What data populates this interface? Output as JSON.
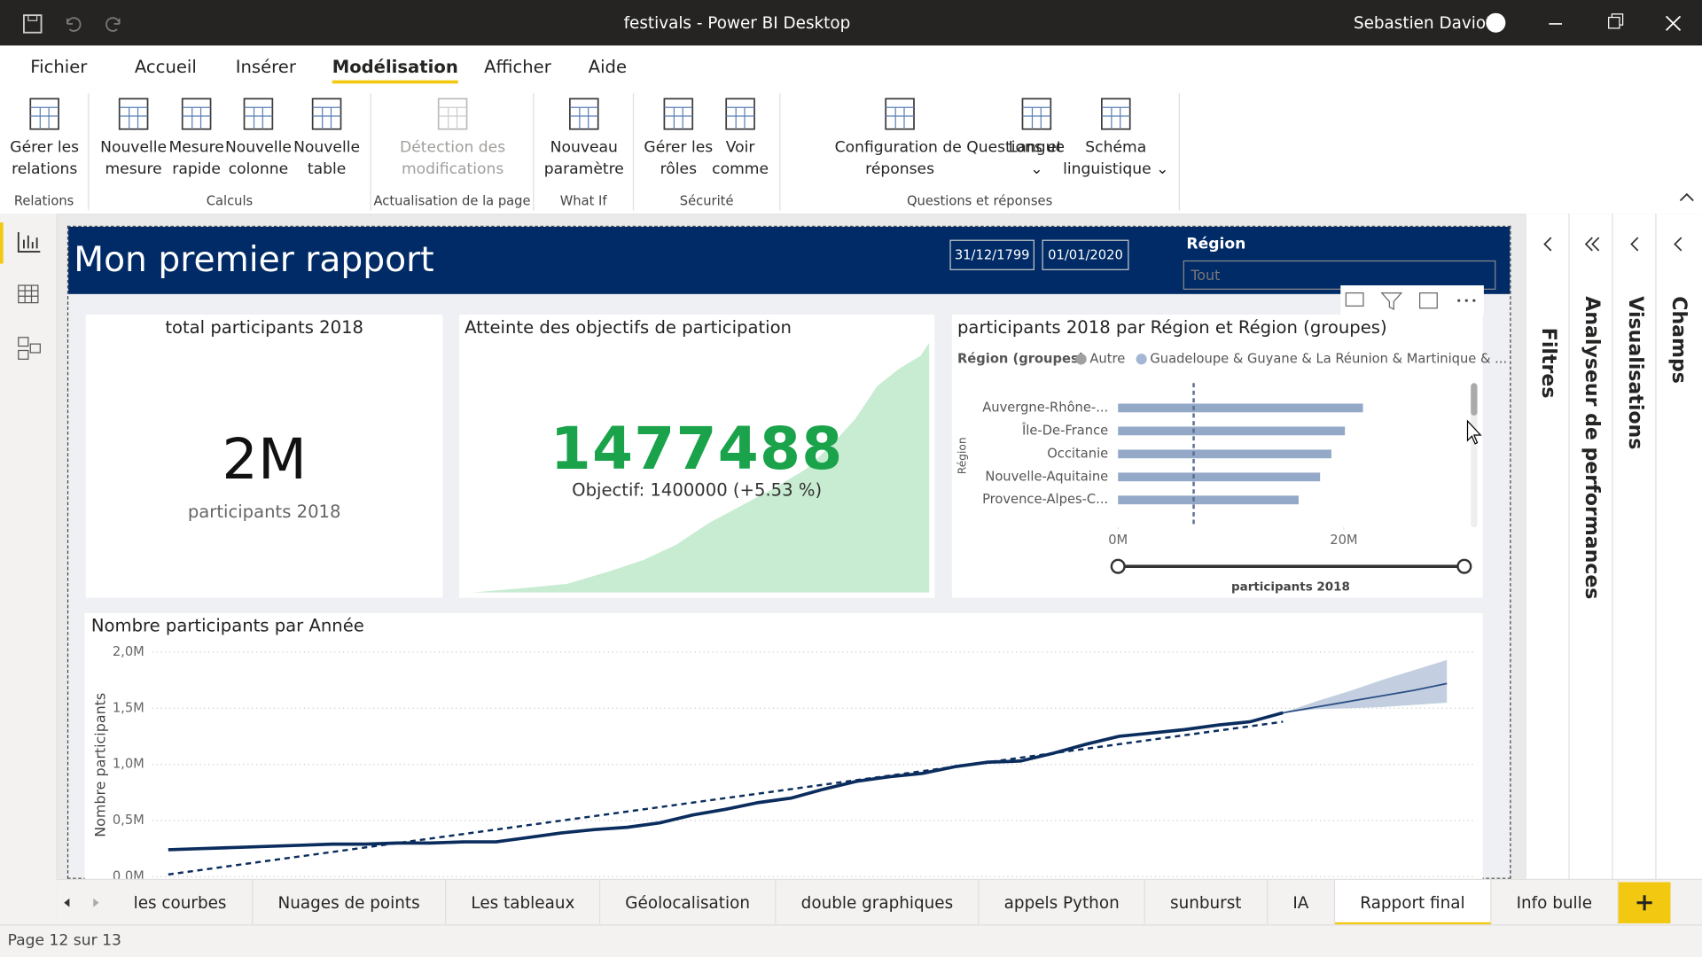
{
  "titlebar": {
    "title": "festivals - Power BI Desktop",
    "user": "Sebastien Daviot"
  },
  "menu": {
    "items": [
      "Fichier",
      "Accueil",
      "Insérer",
      "Modélisation",
      "Afficher",
      "Aide"
    ],
    "active": 3
  },
  "ribbon": {
    "groups": [
      {
        "label": "Relations",
        "buttons": [
          {
            "lines": [
              "Gérer les",
              "relations"
            ]
          }
        ]
      },
      {
        "label": "Calculs",
        "buttons": [
          {
            "lines": [
              "Nouvelle",
              "mesure"
            ]
          },
          {
            "lines": [
              "Mesure",
              "rapide"
            ]
          },
          {
            "lines": [
              "Nouvelle",
              "colonne"
            ]
          },
          {
            "lines": [
              "Nouvelle",
              "table"
            ]
          }
        ]
      },
      {
        "label": "Actualisation de la page",
        "disabled": true,
        "buttons": [
          {
            "lines": [
              "Détection des",
              "modifications"
            ]
          }
        ]
      },
      {
        "label": "What If",
        "buttons": [
          {
            "lines": [
              "Nouveau",
              "paramètre"
            ]
          }
        ]
      },
      {
        "label": "Sécurité",
        "buttons": [
          {
            "lines": [
              "Gérer les",
              "rôles"
            ]
          },
          {
            "lines": [
              "Voir",
              "comme"
            ]
          }
        ]
      },
      {
        "label": "Questions et réponses",
        "buttons": [
          {
            "lines": [
              "Configuration de Questions et",
              "réponses"
            ]
          },
          {
            "lines": [
              "Langue",
              "⌄"
            ]
          },
          {
            "lines": [
              "Schéma",
              "linguistique ⌄"
            ]
          }
        ]
      }
    ]
  },
  "report": {
    "title": "Mon premier rapport",
    "dates": [
      "31/12/1799",
      "01/01/2020"
    ],
    "slicer": {
      "label": "Région",
      "placeholder": "Tout"
    },
    "card": {
      "title": "total participants 2018",
      "value": "2M",
      "label": "participants 2018"
    },
    "kpi": {
      "title": "Atteinte des objectifs de participation",
      "value": "1477488",
      "goal": "Objectif: 1400000 (+5.53 %)"
    },
    "bar_chart": {
      "type": "bar",
      "orientation": "horizontal",
      "title": "participants 2018 par Région et Région (groupes)",
      "legend_title": "Région (groupes)",
      "legend": [
        {
          "name": "Autre",
          "color": "#a0a0a0"
        },
        {
          "name": "Guadeloupe & Guyane & La Réunion & Martinique & ...",
          "color": "#a3b7d4"
        }
      ],
      "ylabel": "Région",
      "xlabel": "participants 2018",
      "categories": [
        "Auvergne-Rhône-...",
        "Île-De-France",
        "Occitanie",
        "Nouvelle-Aquitaine",
        "Provence-Alpes-C..."
      ],
      "values": [
        21.7,
        20.1,
        18.9,
        17.9,
        16.0
      ],
      "color": "#94a9c8",
      "reference_line": 6.7,
      "xlim": [
        0,
        30
      ],
      "xticks": [
        {
          "value": 0,
          "label": "0M"
        },
        {
          "value": 20,
          "label": "20M"
        }
      ]
    },
    "line_chart": {
      "type": "line",
      "title": "Nombre participants par Année",
      "ylabel": "Nombre participants",
      "ylim": [
        0,
        2
      ],
      "yticks": [
        {
          "value": 0,
          "label": "0,0M"
        },
        {
          "value": 0.5,
          "label": "0,5M"
        },
        {
          "value": 1,
          "label": "1,0M"
        },
        {
          "value": 1.5,
          "label": "1,5M"
        },
        {
          "value": 2,
          "label": "2,0M"
        }
      ],
      "grid": true,
      "series": [
        {
          "color": "#0b2d5e",
          "values": [
            0.24,
            0.25,
            0.26,
            0.27,
            0.28,
            0.29,
            0.29,
            0.3,
            0.3,
            0.31,
            0.31,
            0.35,
            0.39,
            0.42,
            0.44,
            0.48,
            0.55,
            0.6,
            0.66,
            0.7,
            0.78,
            0.85,
            0.89,
            0.92,
            0.98,
            1.02,
            1.03,
            1.1,
            1.18,
            1.25,
            1.28,
            1.31,
            1.35,
            1.38,
            1.46,
            null,
            null,
            null,
            null,
            null
          ]
        },
        {
          "color": "#0b2d5e",
          "dashed": true,
          "values": [
            0.02,
            0.06,
            0.1,
            0.14,
            0.18,
            0.22,
            0.26,
            0.3,
            0.34,
            0.38,
            0.42,
            0.46,
            0.5,
            0.54,
            0.58,
            0.62,
            0.66,
            0.7,
            0.74,
            0.78,
            0.82,
            0.86,
            0.9,
            0.94,
            0.98,
            1.02,
            1.06,
            1.1,
            1.14,
            1.18,
            1.22,
            1.26,
            1.3,
            1.34,
            1.38,
            null,
            null,
            null,
            null,
            null
          ]
        },
        {
          "color": "#2c4f85",
          "band_color": "#c3cfe0",
          "values": [
            null,
            null,
            null,
            null,
            null,
            null,
            null,
            null,
            null,
            null,
            null,
            null,
            null,
            null,
            null,
            null,
            null,
            null,
            null,
            null,
            null,
            null,
            null,
            null,
            null,
            null,
            null,
            null,
            null,
            null,
            null,
            null,
            null,
            null,
            1.46,
            1.51,
            1.56,
            1.61,
            1.66,
            1.72
          ],
          "upper": [
            null,
            null,
            null,
            null,
            null,
            null,
            null,
            null,
            null,
            null,
            null,
            null,
            null,
            null,
            null,
            null,
            null,
            null,
            null,
            null,
            null,
            null,
            null,
            null,
            null,
            null,
            null,
            null,
            null,
            null,
            null,
            null,
            null,
            null,
            1.46,
            1.56,
            1.65,
            1.75,
            1.84,
            1.93
          ],
          "lower": [
            null,
            null,
            null,
            null,
            null,
            null,
            null,
            null,
            null,
            null,
            null,
            null,
            null,
            null,
            null,
            null,
            null,
            null,
            null,
            null,
            null,
            null,
            null,
            null,
            null,
            null,
            null,
            null,
            null,
            null,
            null,
            null,
            null,
            null,
            1.46,
            1.49,
            1.5,
            1.51,
            1.53,
            1.55
          ]
        }
      ]
    }
  },
  "pages": {
    "tabs": [
      "les courbes",
      "Nuages de points",
      "Les tableaux",
      "Géolocalisation",
      "double graphiques",
      "appels Python",
      "sunburst",
      "IA",
      "Rapport final",
      "Info bulle"
    ],
    "active": 8
  },
  "status": "Page 12 sur 13",
  "panes": [
    "Filtres",
    "Analyseur de performances",
    "Visualisations",
    "Champs"
  ]
}
